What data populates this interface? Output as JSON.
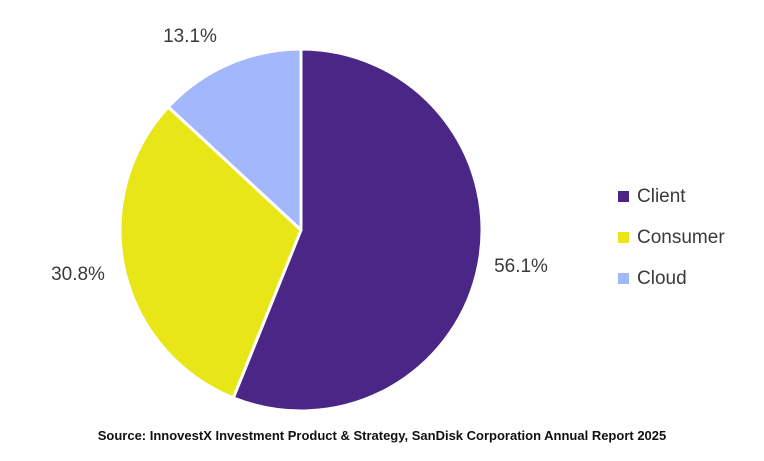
{
  "chart_data": {
    "type": "pie",
    "slices": [
      {
        "name": "Client",
        "value": 56.1,
        "label": "56.1%",
        "color": "#4a2786"
      },
      {
        "name": "Consumer",
        "value": 30.8,
        "label": "30.8%",
        "color": "#e8e617"
      },
      {
        "name": "Cloud",
        "value": 13.1,
        "label": "13.1%",
        "color": "#a3b8fb"
      }
    ],
    "legend_position": "right",
    "start": "top, clockwise"
  },
  "legend": {
    "items": [
      {
        "label": "Client",
        "color": "#4a2786"
      },
      {
        "label": "Consumer",
        "color": "#e8e617"
      },
      {
        "label": "Cloud",
        "color": "#a3b8fb"
      }
    ]
  },
  "source": "Source: InnovestX Investment Product & Strategy, SanDisk Corporation Annual Report 2025"
}
